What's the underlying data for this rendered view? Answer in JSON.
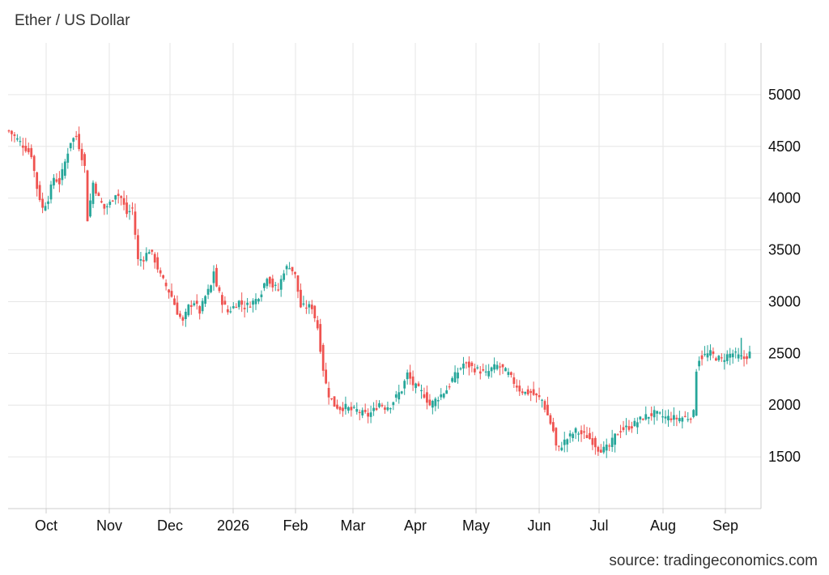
{
  "title": "Ether / US Dollar",
  "source": "source: tradingeconomics.com",
  "chart_data": {
    "type": "candlestick",
    "title": "Ether / US Dollar",
    "x_tick_labels": [
      "Oct",
      "Nov",
      "Dec",
      "2026",
      "Feb",
      "Mar",
      "Apr",
      "May",
      "Jun",
      "Jul",
      "Aug",
      "Sep"
    ],
    "y_tick_labels": [
      "1500",
      "2000",
      "2500",
      "3000",
      "3500",
      "4000",
      "4500",
      "5000"
    ],
    "y_ticks": [
      1500,
      2000,
      2500,
      3000,
      3500,
      4000,
      4500,
      5000
    ],
    "ylim": [
      1000,
      5500
    ],
    "grid": true,
    "colors": {
      "up": "#26a69a",
      "down": "#ef5350",
      "grid": "#e6e6e6",
      "axis": "#cccccc"
    },
    "anchors": [
      [
        0,
        4650
      ],
      [
        4,
        4540
      ],
      [
        8,
        4420
      ],
      [
        10,
        4100
      ],
      [
        12,
        3900
      ],
      [
        14,
        4000
      ],
      [
        16,
        4200
      ],
      [
        18,
        4150
      ],
      [
        20,
        4350
      ],
      [
        22,
        4550
      ],
      [
        24,
        4600
      ],
      [
        25,
        4500
      ],
      [
        27,
        4300
      ],
      [
        28,
        3800
      ],
      [
        30,
        4150
      ],
      [
        32,
        4000
      ],
      [
        34,
        3900
      ],
      [
        36,
        3950
      ],
      [
        38,
        4050
      ],
      [
        40,
        4000
      ],
      [
        42,
        3850
      ],
      [
        44,
        3900
      ],
      [
        46,
        3400
      ],
      [
        48,
        3420
      ],
      [
        50,
        3500
      ],
      [
        52,
        3400
      ],
      [
        54,
        3250
      ],
      [
        56,
        3150
      ],
      [
        58,
        3050
      ],
      [
        60,
        2900
      ],
      [
        62,
        2800
      ],
      [
        64,
        2950
      ],
      [
        66,
        3000
      ],
      [
        68,
        2900
      ],
      [
        70,
        3050
      ],
      [
        72,
        3150
      ],
      [
        73,
        3300
      ],
      [
        74,
        3150
      ],
      [
        76,
        3000
      ],
      [
        78,
        2900
      ],
      [
        80,
        2950
      ],
      [
        82,
        3000
      ],
      [
        84,
        2950
      ],
      [
        86,
        2980
      ],
      [
        88,
        3020
      ],
      [
        90,
        3100
      ],
      [
        92,
        3250
      ],
      [
        94,
        3150
      ],
      [
        96,
        3120
      ],
      [
        98,
        3300
      ],
      [
        100,
        3350
      ],
      [
        102,
        3250
      ],
      [
        104,
        2950
      ],
      [
        106,
        2950
      ],
      [
        108,
        2950
      ],
      [
        110,
        2750
      ],
      [
        112,
        2350
      ],
      [
        113,
        2200
      ],
      [
        114,
        2100
      ],
      [
        116,
        2000
      ],
      [
        118,
        1970
      ],
      [
        120,
        1980
      ],
      [
        122,
        1950
      ],
      [
        124,
        1950
      ],
      [
        126,
        1920
      ],
      [
        128,
        1900
      ],
      [
        130,
        1950
      ],
      [
        132,
        2020
      ],
      [
        134,
        1980
      ],
      [
        136,
        2000
      ],
      [
        138,
        2080
      ],
      [
        140,
        2150
      ],
      [
        142,
        2300
      ],
      [
        144,
        2200
      ],
      [
        146,
        2150
      ],
      [
        148,
        2100
      ],
      [
        150,
        2000
      ],
      [
        152,
        2050
      ],
      [
        154,
        2100
      ],
      [
        156,
        2150
      ],
      [
        158,
        2250
      ],
      [
        160,
        2320
      ],
      [
        162,
        2400
      ],
      [
        164,
        2380
      ],
      [
        166,
        2350
      ],
      [
        168,
        2330
      ],
      [
        170,
        2300
      ],
      [
        172,
        2350
      ],
      [
        174,
        2380
      ],
      [
        176,
        2350
      ],
      [
        178,
        2300
      ],
      [
        180,
        2220
      ],
      [
        182,
        2150
      ],
      [
        184,
        2120
      ],
      [
        186,
        2120
      ],
      [
        188,
        2080
      ],
      [
        190,
        2050
      ],
      [
        192,
        1900
      ],
      [
        194,
        1750
      ],
      [
        195,
        1600
      ],
      [
        196,
        1580
      ],
      [
        198,
        1650
      ],
      [
        200,
        1700
      ],
      [
        202,
        1750
      ],
      [
        204,
        1720
      ],
      [
        206,
        1700
      ],
      [
        208,
        1650
      ],
      [
        210,
        1580
      ],
      [
        212,
        1570
      ],
      [
        214,
        1600
      ],
      [
        216,
        1700
      ],
      [
        218,
        1760
      ],
      [
        220,
        1780
      ],
      [
        222,
        1800
      ],
      [
        224,
        1840
      ],
      [
        226,
        1880
      ],
      [
        228,
        1900
      ],
      [
        230,
        1920
      ],
      [
        232,
        1900
      ],
      [
        234,
        1880
      ],
      [
        236,
        1880
      ],
      [
        238,
        1870
      ],
      [
        240,
        1880
      ],
      [
        242,
        1880
      ],
      [
        244,
        1920
      ],
      [
        245,
        2350
      ],
      [
        246,
        2450
      ],
      [
        248,
        2480
      ],
      [
        250,
        2500
      ],
      [
        252,
        2460
      ],
      [
        254,
        2440
      ],
      [
        256,
        2480
      ],
      [
        258,
        2500
      ],
      [
        260,
        2470
      ],
      [
        262,
        2450
      ],
      [
        264,
        2500
      ]
    ]
  }
}
